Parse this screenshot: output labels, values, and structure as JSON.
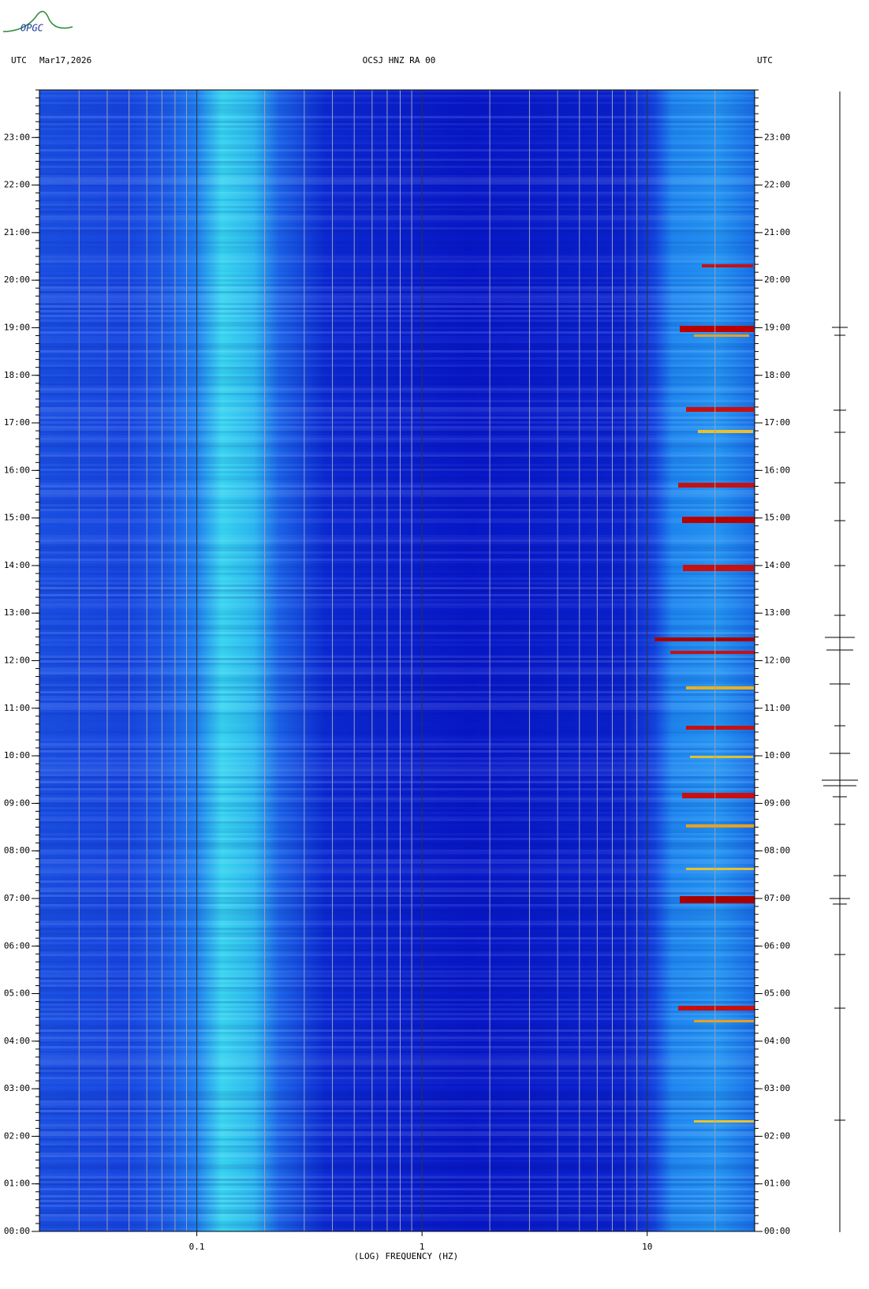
{
  "logo": "OPGC",
  "chart_data": {
    "type": "spectrogram",
    "title": "OCSJ HNZ RA 00",
    "date": "Mar17,2026",
    "left_label": "UTC",
    "right_label": "UTC",
    "xlabel": "(LOG) FREQUENCY (HZ)",
    "xscale": "log",
    "xlim": [
      0.02,
      30
    ],
    "xticks": [
      0.1,
      1,
      10
    ],
    "minor_xgrid": [
      0.03,
      0.04,
      0.05,
      0.06,
      0.07,
      0.08,
      0.09,
      0.2,
      0.3,
      0.4,
      0.5,
      0.6,
      0.7,
      0.8,
      0.9,
      2,
      3,
      4,
      5,
      6,
      7,
      8,
      9,
      20
    ],
    "ylim": [
      0,
      24
    ],
    "yticks": [
      {
        "value": 0,
        "label": "00:00"
      },
      {
        "value": 1,
        "label": "01:00"
      },
      {
        "value": 2,
        "label": "02:00"
      },
      {
        "value": 3,
        "label": "03:00"
      },
      {
        "value": 4,
        "label": "04:00"
      },
      {
        "value": 5,
        "label": "05:00"
      },
      {
        "value": 6,
        "label": "06:00"
      },
      {
        "value": 7,
        "label": "07:00"
      },
      {
        "value": 8,
        "label": "08:00"
      },
      {
        "value": 9,
        "label": "09:00"
      },
      {
        "value": 10,
        "label": "10:00"
      },
      {
        "value": 11,
        "label": "11:00"
      },
      {
        "value": 12,
        "label": "12:00"
      },
      {
        "value": 13,
        "label": "13:00"
      },
      {
        "value": 14,
        "label": "14:00"
      },
      {
        "value": 15,
        "label": "15:00"
      },
      {
        "value": 16,
        "label": "16:00"
      },
      {
        "value": 17,
        "label": "17:00"
      },
      {
        "value": 18,
        "label": "18:00"
      },
      {
        "value": 19,
        "label": "19:00"
      },
      {
        "value": 20,
        "label": "20:00"
      },
      {
        "value": 21,
        "label": "21:00"
      },
      {
        "value": 22,
        "label": "22:00"
      },
      {
        "value": 23,
        "label": "23:00"
      }
    ]
  }
}
